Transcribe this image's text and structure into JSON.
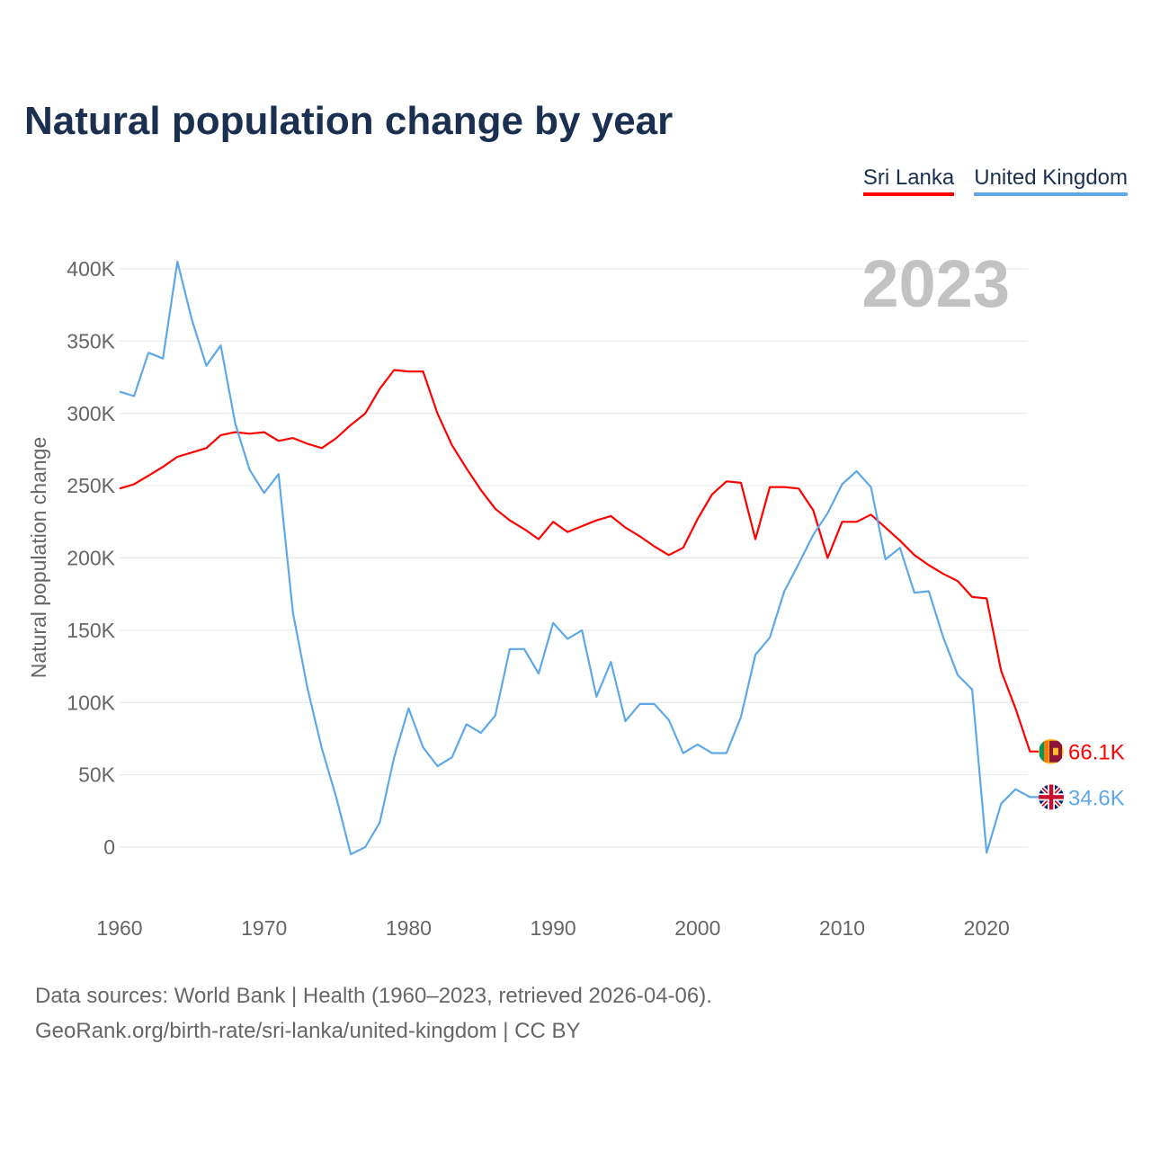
{
  "chart_data": {
    "type": "line",
    "title": "Natural population change by year",
    "ylabel": "Natural population change",
    "xlabel": "",
    "ylim": [
      -30000,
      420000
    ],
    "xlim": [
      1960,
      2023
    ],
    "grid": true,
    "legend_position": "top-right",
    "year_label": "2023",
    "x_ticks": [
      1960,
      1970,
      1980,
      1990,
      2000,
      2010,
      2020
    ],
    "y_ticks": [
      0,
      50000,
      100000,
      150000,
      200000,
      250000,
      300000,
      350000,
      400000
    ],
    "y_tick_labels": [
      "0",
      "50K",
      "100K",
      "150K",
      "200K",
      "250K",
      "300K",
      "350K",
      "400K"
    ],
    "x_tick_labels": [
      "1960",
      "1970",
      "1980",
      "1990",
      "2000",
      "2010",
      "2020"
    ],
    "x": [
      1960,
      1961,
      1962,
      1963,
      1964,
      1965,
      1966,
      1967,
      1968,
      1969,
      1970,
      1971,
      1972,
      1973,
      1974,
      1975,
      1976,
      1977,
      1978,
      1979,
      1980,
      1981,
      1982,
      1983,
      1984,
      1985,
      1986,
      1987,
      1988,
      1989,
      1990,
      1991,
      1992,
      1993,
      1994,
      1995,
      1996,
      1997,
      1998,
      1999,
      2000,
      2001,
      2002,
      2003,
      2004,
      2005,
      2006,
      2007,
      2008,
      2009,
      2010,
      2011,
      2012,
      2013,
      2014,
      2015,
      2016,
      2017,
      2018,
      2019,
      2020,
      2021,
      2022,
      2023
    ],
    "series": [
      {
        "name": "Sri Lanka",
        "color": "#ff0000",
        "end_label": "66.1K",
        "values": [
          248000,
          251000,
          257000,
          263000,
          270000,
          273000,
          276000,
          285000,
          287000,
          286000,
          287000,
          281000,
          283000,
          279000,
          276000,
          283000,
          292000,
          300000,
          317000,
          330000,
          329000,
          329000,
          300000,
          278000,
          262000,
          247000,
          234000,
          226000,
          220000,
          213000,
          225000,
          218000,
          222000,
          226000,
          229000,
          221000,
          215000,
          208000,
          202000,
          207000,
          227000,
          244000,
          253000,
          252000,
          213000,
          249000,
          249000,
          248000,
          233000,
          200000,
          225000,
          225000,
          230000,
          221000,
          212000,
          202000,
          195000,
          189000,
          184000,
          173000,
          172000,
          122000,
          96000,
          66100
        ]
      },
      {
        "name": "United Kingdom",
        "color": "#5fa8e8",
        "end_label": "34.6K",
        "values": [
          315000,
          312000,
          342000,
          338000,
          405000,
          365000,
          333000,
          347000,
          293000,
          261000,
          245000,
          258000,
          162000,
          110000,
          68000,
          34000,
          -5000,
          0,
          17000,
          62000,
          96000,
          69000,
          56000,
          62000,
          85000,
          79000,
          91000,
          137000,
          137000,
          120000,
          155000,
          144000,
          150000,
          104000,
          128000,
          87000,
          99000,
          99000,
          88000,
          65000,
          71000,
          65000,
          65000,
          90000,
          133000,
          145000,
          177000,
          196000,
          216000,
          231000,
          251000,
          260000,
          249000,
          199000,
          207000,
          176000,
          177000,
          145000,
          119000,
          109000,
          -4000,
          30000,
          40000,
          34600
        ]
      }
    ]
  },
  "footer": {
    "line1": "Data sources: World Bank | Health (1960–2023, retrieved 2026-04-06).",
    "line2": "GeoRank.org/birth-rate/sri-lanka/united-kingdom | CC BY"
  }
}
